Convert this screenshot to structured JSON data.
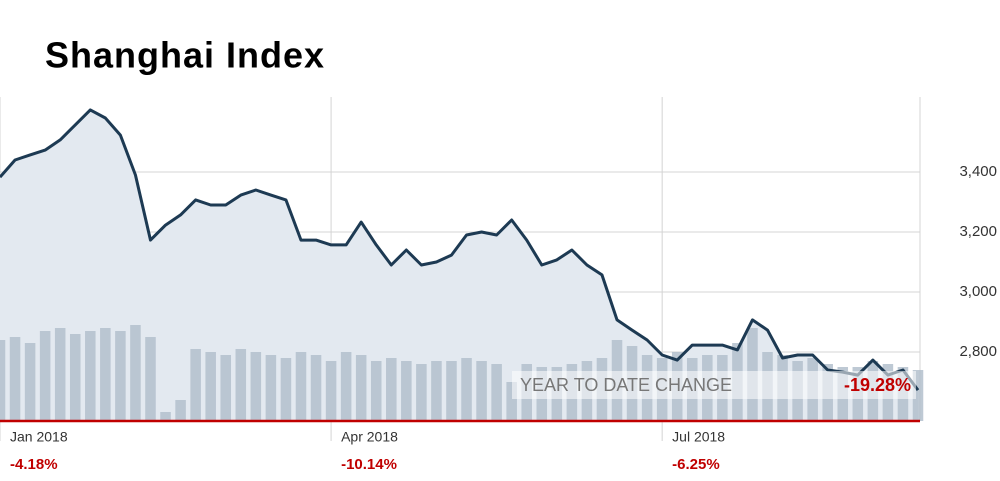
{
  "chart_data": {
    "type": "line",
    "title": "Shanghai Index",
    "categories": [
      "Jan 2018",
      null,
      null,
      null,
      null,
      null,
      null,
      null,
      null,
      null,
      null,
      null,
      null,
      null,
      null,
      null,
      null,
      null,
      null,
      null,
      null,
      null,
      "Apr 2018",
      null,
      null,
      null,
      null,
      null,
      null,
      null,
      null,
      null,
      null,
      null,
      null,
      null,
      null,
      null,
      null,
      null,
      null,
      null,
      null,
      null,
      "Jul 2018",
      null,
      null,
      null,
      null,
      null,
      null,
      null,
      null,
      null,
      null,
      null,
      null,
      null,
      null,
      null,
      null,
      null
    ],
    "series": [
      {
        "type": "line",
        "color": "#1d3a53",
        "area_color": "#e3e9f0",
        "values": [
          3383,
          3440,
          3457,
          3473,
          3507,
          3557,
          3607,
          3580,
          3523,
          3390,
          3173,
          3223,
          3257,
          3307,
          3290,
          3290,
          3323,
          3340,
          3323,
          3307,
          3173,
          3173,
          3157,
          3157,
          3233,
          3157,
          3090,
          3140,
          3090,
          3100,
          3123,
          3190,
          3200,
          3190,
          3240,
          3173,
          3090,
          3107,
          3140,
          3090,
          3057,
          2907,
          2873,
          2840,
          2790,
          2773,
          2823,
          2823,
          2823,
          2807,
          2907,
          2873,
          2780,
          2790,
          2790,
          2740,
          2733,
          2723,
          2773,
          2723,
          2740,
          2673
        ]
      },
      {
        "type": "bar",
        "color": "#b3bfcd",
        "values": [
          2840,
          2850,
          2830,
          2870,
          2880,
          2860,
          2870,
          2880,
          2870,
          2890,
          2850,
          2600,
          2640,
          2810,
          2800,
          2790,
          2810,
          2800,
          2790,
          2780,
          2800,
          2790,
          2770,
          2800,
          2790,
          2770,
          2780,
          2770,
          2760,
          2770,
          2770,
          2780,
          2770,
          2760,
          2700,
          2760,
          2750,
          2750,
          2760,
          2770,
          2780,
          2840,
          2820,
          2790,
          2780,
          2800,
          2780,
          2790,
          2790,
          2830,
          2880,
          2800,
          2790,
          2770,
          2780,
          2760,
          2750,
          2750,
          2770,
          2760,
          2750,
          2740
        ]
      }
    ],
    "ylim": [
      2570,
      3650
    ],
    "yticks": [
      {
        "value": 2800,
        "label": "2,800"
      },
      {
        "value": 3000,
        "label": "3,000"
      },
      {
        "value": 3200,
        "label": "3,200"
      },
      {
        "value": 3400,
        "label": "3,400"
      }
    ],
    "grid": true,
    "quarter_changes": {
      "values": [
        -4.18,
        -10.14,
        -6.25
      ],
      "value_labels": [
        "-4.18%",
        "-10.14%",
        "-6.25%"
      ]
    },
    "ytd_change": {
      "label": "YEAR TO DATE CHANGE",
      "value": -19.28,
      "value_label": "-19.28%"
    }
  }
}
